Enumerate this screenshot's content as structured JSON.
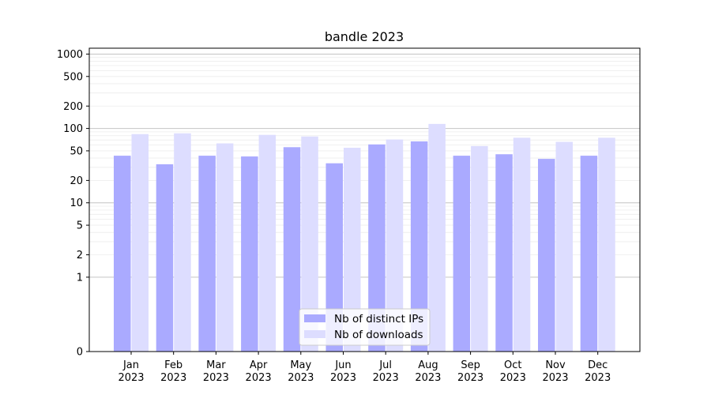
{
  "chart_data": {
    "type": "bar",
    "title": "bandle 2023",
    "xlabel": "",
    "ylabel": "",
    "yscale": "symlog",
    "ylim": [
      0,
      1200
    ],
    "grid": "horizontal",
    "categories": [
      {
        "month": "Jan",
        "year": "2023"
      },
      {
        "month": "Feb",
        "year": "2023"
      },
      {
        "month": "Mar",
        "year": "2023"
      },
      {
        "month": "Apr",
        "year": "2023"
      },
      {
        "month": "May",
        "year": "2023"
      },
      {
        "month": "Jun",
        "year": "2023"
      },
      {
        "month": "Jul",
        "year": "2023"
      },
      {
        "month": "Aug",
        "year": "2023"
      },
      {
        "month": "Sep",
        "year": "2023"
      },
      {
        "month": "Oct",
        "year": "2023"
      },
      {
        "month": "Nov",
        "year": "2023"
      },
      {
        "month": "Dec",
        "year": "2023"
      }
    ],
    "yticks": [
      0,
      1,
      2,
      5,
      10,
      20,
      50,
      100,
      200,
      500,
      1000
    ],
    "series": [
      {
        "name": "Nb of distinct IPs",
        "color": "#aaaaff",
        "values": [
          43,
          33,
          43,
          42,
          56,
          34,
          61,
          67,
          43,
          45,
          39,
          43
        ]
      },
      {
        "name": "Nb of downloads",
        "color": "#ddddff",
        "values": [
          84,
          86,
          63,
          82,
          78,
          55,
          71,
          115,
          58,
          75,
          66,
          75
        ]
      }
    ],
    "legend_position": "lower-center"
  }
}
